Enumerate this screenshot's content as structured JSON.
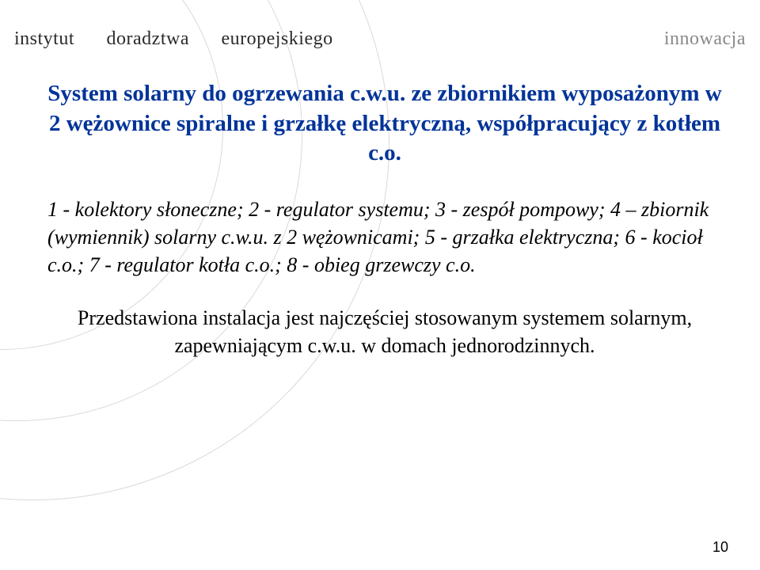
{
  "header": {
    "left_word1": "instytut",
    "left_word2": "doradztwa",
    "left_word3": "europejskiego",
    "right": "innowacja"
  },
  "title": "System solarny do ogrzewania c.w.u. ze zbiornikiem wyposażonym w 2 wężownice spiralne i grzałkę elektryczną, współpracujący z kotłem c.o.",
  "legend": "1 - kolektory słoneczne; 2 - regulator systemu; 3 - zespół pompowy; 4 – zbiornik (wymiennik) solarny c.w.u. z 2 wężownicami; 5 - grzałka elektryczna; 6 - kocioł c.o.; 7 - regulator kotła c.o.; 8 - obieg grzewczy c.o.",
  "summary": "Przedstawiona instalacja jest najczęściej stosowanym systemem solarnym, zapewniającym c.w.u. w domach jednorodzinnych.",
  "page_number": "10",
  "colors": {
    "title_color": "#003399",
    "header_right_color": "#888888",
    "arc_color": "#d9d9d9",
    "background": "#ffffff",
    "text": "#000000"
  }
}
